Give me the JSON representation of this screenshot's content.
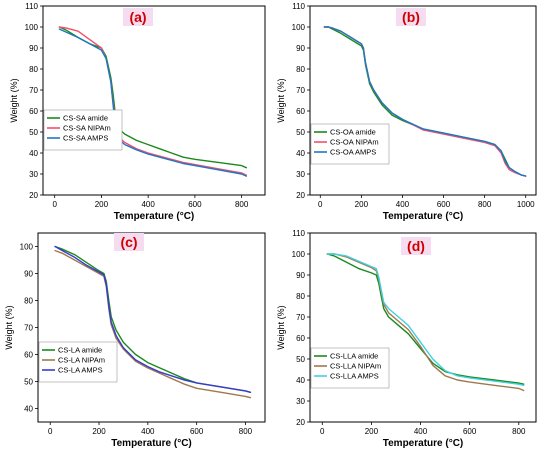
{
  "colors": {
    "green": "#1a8a1a",
    "red": "#f0506e",
    "blue": "#1f77c4",
    "brown": "#a07850",
    "navy": "#3a3ad0",
    "cyan": "#3fd0e0",
    "panel_label": "#d00000"
  },
  "chart_data": [
    {
      "type": "line",
      "panel_label": "(a)",
      "xlabel": "Temperature (°C)",
      "ylabel": "Weight (%)",
      "xlim": [
        -50,
        900
      ],
      "ylim": [
        20,
        110
      ],
      "xticks": [
        0,
        200,
        400,
        600,
        800
      ],
      "yticks": [
        20,
        30,
        40,
        50,
        60,
        70,
        80,
        90,
        100,
        110
      ],
      "legend_position": "center-left",
      "series": [
        {
          "name": "CS-SA amide",
          "color": "#1a8a1a",
          "x": [
            20,
            50,
            100,
            150,
            200,
            220,
            240,
            250,
            260,
            270,
            280,
            300,
            350,
            400,
            450,
            500,
            550,
            600,
            700,
            800,
            820
          ],
          "y": [
            100,
            98.5,
            95,
            92,
            90,
            86,
            76,
            68,
            58,
            54,
            51,
            49,
            46,
            44,
            42,
            40,
            38,
            37,
            35.5,
            34,
            33
          ]
        },
        {
          "name": "CS-SA NIPAm",
          "color": "#f0506e",
          "x": [
            20,
            50,
            100,
            150,
            200,
            220,
            240,
            250,
            260,
            270,
            280,
            300,
            350,
            400,
            450,
            500,
            550,
            600,
            700,
            800,
            820
          ],
          "y": [
            100,
            99.5,
            98,
            94,
            90,
            85,
            74,
            64,
            53,
            49,
            47,
            45,
            42,
            40,
            38.5,
            37,
            35.5,
            34.5,
            32.5,
            30.5,
            29.5
          ]
        },
        {
          "name": "CS-SA AMPS",
          "color": "#1f77c4",
          "x": [
            20,
            50,
            100,
            150,
            200,
            220,
            240,
            250,
            260,
            270,
            280,
            300,
            350,
            400,
            450,
            500,
            550,
            600,
            700,
            800,
            820
          ],
          "y": [
            99,
            97.5,
            95,
            92,
            89,
            85,
            74,
            63,
            52,
            48,
            46,
            44,
            41.5,
            39.5,
            38,
            36.5,
            35,
            34,
            32,
            30,
            29
          ]
        }
      ]
    },
    {
      "type": "line",
      "panel_label": "(b)",
      "xlabel": "Temperature (°C)",
      "ylabel": "Weight (%)",
      "xlim": [
        -50,
        1050
      ],
      "ylim": [
        20,
        110
      ],
      "xticks": [
        0,
        200,
        400,
        600,
        800,
        1000
      ],
      "yticks": [
        20,
        30,
        40,
        50,
        60,
        70,
        80,
        90,
        100,
        110
      ],
      "legend_position": "center-left",
      "series": [
        {
          "name": "CS-OA amide",
          "color": "#1a8a1a",
          "x": [
            20,
            40,
            60,
            100,
            150,
            200,
            210,
            220,
            240,
            260,
            300,
            350,
            400,
            500,
            600,
            700,
            800,
            850,
            880,
            900,
            920,
            950,
            980,
            1000
          ],
          "y": [
            100,
            100,
            99,
            97,
            94,
            91,
            89,
            82,
            73,
            69,
            63,
            58,
            55.5,
            51.5,
            49.5,
            47.5,
            45.5,
            44,
            41,
            37,
            33,
            31,
            29.5,
            29
          ]
        },
        {
          "name": "CS-OA NIPAm",
          "color": "#f0506e",
          "x": [
            20,
            40,
            60,
            100,
            150,
            200,
            210,
            220,
            240,
            260,
            300,
            350,
            400,
            500,
            600,
            700,
            800,
            850,
            880,
            900,
            920,
            950,
            980,
            1000
          ],
          "y": [
            100,
            100,
            99.5,
            98,
            95,
            92,
            90,
            83,
            74,
            70,
            64,
            59,
            56,
            51,
            49,
            47,
            45,
            43.5,
            40,
            35,
            32,
            30.5,
            29.5,
            29
          ]
        },
        {
          "name": "CS-OA AMPS",
          "color": "#1f77c4",
          "x": [
            20,
            40,
            60,
            100,
            150,
            200,
            210,
            220,
            240,
            260,
            300,
            350,
            400,
            500,
            600,
            700,
            800,
            850,
            880,
            900,
            920,
            950,
            980,
            1000
          ],
          "y": [
            100,
            100,
            99.5,
            98,
            95,
            92,
            90,
            83,
            74,
            70,
            64,
            59,
            56,
            51.5,
            49.5,
            47.5,
            45.5,
            44,
            41,
            36,
            33,
            31,
            29.5,
            29
          ]
        }
      ]
    },
    {
      "type": "line",
      "panel_label": "(c)",
      "xlabel": "Temperature (°C)",
      "ylabel": "Weight (%)",
      "xlim": [
        -50,
        880
      ],
      "ylim": [
        35,
        105
      ],
      "xticks": [
        0,
        200,
        400,
        600,
        800
      ],
      "yticks": [
        40,
        50,
        60,
        70,
        80,
        90,
        100
      ],
      "legend_position": "bottom-left",
      "series": [
        {
          "name": "CS-LA amide",
          "color": "#1a8a1a",
          "x": [
            20,
            50,
            100,
            150,
            200,
            220,
            230,
            240,
            250,
            270,
            300,
            350,
            400,
            450,
            500,
            550,
            600,
            700,
            800,
            820
          ],
          "y": [
            100,
            99,
            97,
            94,
            91,
            90,
            87,
            80,
            74,
            69,
            64.5,
            60,
            57,
            55,
            53,
            51,
            49.5,
            48,
            46.5,
            46
          ]
        },
        {
          "name": "CS-LA NIPAm",
          "color": "#a07850",
          "x": [
            20,
            50,
            100,
            150,
            200,
            220,
            230,
            240,
            250,
            270,
            300,
            350,
            400,
            450,
            500,
            550,
            600,
            700,
            800,
            820
          ],
          "y": [
            98.5,
            97.5,
            95,
            92.5,
            90,
            89,
            85,
            77,
            71,
            66,
            62,
            57.5,
            55,
            53,
            51,
            49,
            47.5,
            46,
            44.5,
            44
          ]
        },
        {
          "name": "CS-LA AMPS",
          "color": "#3a3ad0",
          "x": [
            20,
            50,
            100,
            150,
            200,
            220,
            230,
            240,
            250,
            270,
            300,
            350,
            400,
            450,
            500,
            550,
            600,
            700,
            800,
            820
          ],
          "y": [
            100,
            98.5,
            96,
            93,
            90.5,
            89.5,
            86,
            78,
            72,
            67,
            62.5,
            58,
            55.5,
            53.5,
            52,
            50.5,
            49.5,
            48,
            46.5,
            46
          ]
        }
      ]
    },
    {
      "type": "line",
      "panel_label": "(d)",
      "xlabel": "Temperature (°C)",
      "ylabel": "Weight (%)",
      "xlim": [
        -50,
        870
      ],
      "ylim": [
        20,
        110
      ],
      "xticks": [
        0,
        200,
        400,
        600,
        800
      ],
      "yticks": [
        20,
        30,
        40,
        50,
        60,
        70,
        80,
        90,
        100,
        110
      ],
      "legend_position": "bottom-left",
      "series": [
        {
          "name": "CS-LLA amide",
          "color": "#1a8a1a",
          "x": [
            20,
            50,
            100,
            150,
            200,
            220,
            230,
            240,
            250,
            270,
            300,
            350,
            400,
            450,
            500,
            550,
            600,
            700,
            800,
            820
          ],
          "y": [
            100,
            99,
            96,
            93,
            91,
            90,
            86,
            80,
            74,
            70,
            67,
            62,
            55,
            48,
            44,
            42.5,
            41.5,
            40,
            38.5,
            38
          ]
        },
        {
          "name": "CS-LLA NIPAm",
          "color": "#a07850",
          "x": [
            20,
            50,
            100,
            150,
            200,
            220,
            230,
            240,
            250,
            270,
            300,
            350,
            400,
            450,
            500,
            550,
            600,
            700,
            800,
            820
          ],
          "y": [
            100,
            100,
            98.5,
            96,
            93.5,
            92,
            88,
            82,
            76,
            72,
            69,
            64,
            56,
            47,
            42,
            40,
            39,
            37.5,
            36,
            35
          ]
        },
        {
          "name": "CS-LLA AMPS",
          "color": "#3fd0e0",
          "x": [
            20,
            50,
            100,
            150,
            200,
            220,
            230,
            240,
            250,
            270,
            300,
            350,
            400,
            450,
            500,
            550,
            600,
            700,
            800,
            820
          ],
          "y": [
            100,
            100,
            99,
            96.5,
            94,
            93,
            89,
            83,
            77,
            74,
            71,
            66,
            58,
            50,
            44.5,
            42,
            41,
            39.5,
            38,
            37.5
          ]
        }
      ]
    }
  ]
}
